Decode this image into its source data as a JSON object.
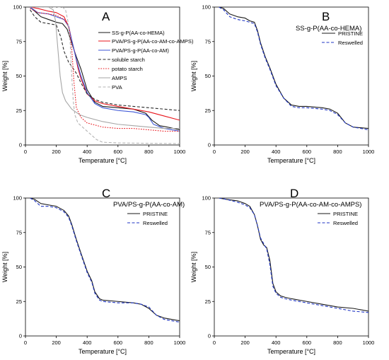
{
  "colors": {
    "black": "#1a1a1a",
    "red": "#e8141b",
    "blue": "#3b55d6",
    "dashed_black": "#2a2a2a",
    "dotted_red": "#e8141b",
    "gray": "#a6a6a6",
    "dashed_gray": "#b3b3b3",
    "reswelled_blue": "#1f35c4"
  },
  "chart_data": [
    {
      "panel": "A",
      "title": "",
      "type": "line",
      "xlabel": "Temperature [°C]",
      "ylabel": "Weight [%]",
      "xlim": [
        0,
        1000
      ],
      "ylim": [
        0,
        100
      ],
      "xticks": [
        "0",
        "200",
        "400",
        "600",
        "800",
        "1000"
      ],
      "yticks": [
        "0",
        "25",
        "50",
        "75",
        "100"
      ],
      "legend_position": "top-right",
      "series": [
        {
          "name": "SS-g-P(AA-co-HEMA)",
          "style": "solid",
          "color": "black",
          "x": [
            30,
            60,
            100,
            150,
            200,
            240,
            270,
            300,
            330,
            360,
            400,
            450,
            500,
            600,
            700,
            780,
            820,
            870,
            920,
            1000
          ],
          "y": [
            100,
            97,
            93,
            91,
            89,
            88,
            84,
            74,
            64,
            55,
            40,
            31,
            28,
            27,
            26,
            23,
            18,
            14,
            13,
            11
          ]
        },
        {
          "name": "PVA/PS-g-P(AA-co-AM-co-AMPS)",
          "style": "solid",
          "color": "red",
          "x": [
            30,
            80,
            150,
            200,
            250,
            280,
            300,
            320,
            340,
            360,
            400,
            450,
            500,
            600,
            700,
            800,
            900,
            1000
          ],
          "y": [
            100,
            99,
            97,
            96,
            93,
            86,
            76,
            67,
            56,
            48,
            37,
            32,
            30,
            28,
            26,
            24,
            21,
            18
          ]
        },
        {
          "name": "PVA/PS-g-P(AA-co-AM)",
          "style": "solid",
          "color": "blue",
          "x": [
            30,
            80,
            150,
            200,
            250,
            280,
            300,
            330,
            360,
            400,
            450,
            500,
            600,
            700,
            780,
            800,
            830,
            900,
            1000
          ],
          "y": [
            100,
            96,
            95,
            93,
            91,
            86,
            76,
            62,
            50,
            38,
            30,
            27,
            25,
            24,
            22,
            20,
            15,
            12,
            10
          ]
        },
        {
          "name": "soluble starch",
          "style": "dashed",
          "color": "dashed_black",
          "x": [
            30,
            60,
            100,
            150,
            200,
            230,
            250,
            280,
            300,
            330,
            360,
            400,
            450,
            500,
            600,
            700,
            800,
            900,
            1000
          ],
          "y": [
            98,
            93,
            89,
            88,
            87,
            78,
            68,
            60,
            57,
            52,
            45,
            37,
            33,
            31,
            29,
            28,
            27,
            26,
            25
          ]
        },
        {
          "name": "potato starch",
          "style": "dotted",
          "color": "dotted_red",
          "x": [
            30,
            80,
            150,
            200,
            250,
            270,
            285,
            300,
            315,
            330,
            360,
            400,
            500,
            600,
            700,
            800,
            900,
            1000
          ],
          "y": [
            99,
            96,
            95,
            94,
            91,
            88,
            84,
            70,
            45,
            27,
            20,
            16,
            13,
            12,
            12,
            11,
            10,
            10
          ]
        },
        {
          "name": "AMPS",
          "style": "solid",
          "color": "gray",
          "x": [
            30,
            100,
            150,
            180,
            195,
            210,
            225,
            240,
            260,
            300,
            350,
            400,
            500,
            600,
            700,
            800,
            900,
            1000
          ],
          "y": [
            100,
            100,
            100,
            98,
            90,
            70,
            50,
            38,
            32,
            26,
            22,
            20,
            17,
            15,
            14,
            13,
            12,
            12
          ]
        },
        {
          "name": "PVA",
          "style": "dashed",
          "color": "dashed_gray",
          "x": [
            30,
            100,
            180,
            240,
            260,
            275,
            290,
            300,
            310,
            320,
            340,
            380,
            420,
            460,
            500,
            600,
            800,
            1000
          ],
          "y": [
            100,
            100,
            100,
            100,
            98,
            90,
            74,
            50,
            32,
            22,
            16,
            12,
            8,
            4,
            2,
            1.5,
            1.2,
            1
          ]
        }
      ]
    },
    {
      "panel": "B",
      "title": "SS-g-P(AA-co-HEMA)",
      "type": "line",
      "xlabel": "Temperature [°C]",
      "ylabel": "Weight [%]",
      "xlim": [
        0,
        1000
      ],
      "ylim": [
        0,
        100
      ],
      "xticks": [
        "0",
        "200",
        "400",
        "600",
        "800",
        "1000"
      ],
      "yticks": [
        "0",
        "25",
        "50",
        "75",
        "100"
      ],
      "legend_position": "top-right",
      "series": [
        {
          "name": "PRISTINE",
          "style": "solid",
          "color": "black",
          "x": [
            30,
            60,
            100,
            150,
            200,
            230,
            260,
            280,
            300,
            330,
            360,
            400,
            450,
            500,
            550,
            600,
            700,
            750,
            800,
            850,
            900,
            1000
          ],
          "y": [
            100,
            99,
            95,
            93,
            92,
            90,
            89,
            83,
            74,
            64,
            56,
            44,
            34,
            29,
            28,
            28,
            27,
            26,
            23,
            16,
            13,
            12
          ]
        },
        {
          "name": "Reswelled",
          "style": "dashed",
          "color": "reswelled_blue",
          "x": [
            30,
            60,
            100,
            150,
            200,
            230,
            260,
            280,
            300,
            330,
            360,
            400,
            450,
            500,
            550,
            600,
            700,
            750,
            800,
            850,
            900,
            1000
          ],
          "y": [
            100,
            98,
            93,
            91,
            90,
            89,
            88,
            82,
            73,
            63,
            55,
            43,
            34,
            28,
            27,
            27,
            26,
            25,
            22,
            16,
            13,
            11
          ]
        }
      ]
    },
    {
      "panel": "C",
      "title": "PVA/PS-g-P(AA-co-AM)",
      "type": "line",
      "xlabel": "Temperature [°C]",
      "ylabel": "Weight [%]",
      "xlim": [
        0,
        1000
      ],
      "ylim": [
        0,
        100
      ],
      "xticks": [
        "0",
        "200",
        "400",
        "600",
        "800",
        "1000"
      ],
      "yticks": [
        "0",
        "25",
        "50",
        "75",
        "100"
      ],
      "legend_position": "top-right",
      "series": [
        {
          "name": "PRISTINE",
          "style": "solid",
          "color": "black",
          "x": [
            30,
            60,
            100,
            150,
            200,
            250,
            280,
            300,
            330,
            360,
            400,
            430,
            450,
            480,
            500,
            600,
            700,
            750,
            800,
            850,
            900,
            1000
          ],
          "y": [
            100,
            99,
            96,
            95,
            94,
            91,
            87,
            81,
            70,
            60,
            47,
            40,
            32,
            27,
            26,
            25,
            24,
            23,
            20,
            15,
            13,
            11
          ]
        },
        {
          "name": "Reswelled",
          "style": "dashed",
          "color": "reswelled_blue",
          "x": [
            30,
            60,
            100,
            150,
            200,
            250,
            280,
            300,
            330,
            360,
            400,
            430,
            450,
            480,
            500,
            600,
            700,
            750,
            800,
            850,
            900,
            1000
          ],
          "y": [
            100,
            98,
            94,
            94,
            93,
            90,
            86,
            80,
            69,
            59,
            46,
            39,
            31,
            26,
            25,
            24,
            24,
            23,
            21,
            15,
            12,
            10
          ]
        }
      ]
    },
    {
      "panel": "D",
      "title": "PVA/PS-g-P(AA-co-AM-co-AMPS)",
      "type": "line",
      "xlabel": "Temperature [°C]",
      "ylabel": "Weight [%]",
      "xlim": [
        0,
        1000
      ],
      "ylim": [
        0,
        100
      ],
      "xticks": [
        "0",
        "200",
        "400",
        "600",
        "800",
        "1000"
      ],
      "yticks": [
        "0",
        "25",
        "50",
        "75",
        "100"
      ],
      "legend_position": "top-right",
      "series": [
        {
          "name": "PRISTINE",
          "style": "solid",
          "color": "black",
          "x": [
            30,
            80,
            150,
            200,
            230,
            260,
            280,
            300,
            320,
            340,
            360,
            380,
            400,
            430,
            460,
            500,
            600,
            700,
            800,
            900,
            1000
          ],
          "y": [
            100,
            99,
            98,
            96,
            94,
            88,
            80,
            70,
            66,
            64,
            55,
            38,
            32,
            29,
            28,
            27,
            25,
            23,
            21,
            20,
            18
          ]
        },
        {
          "name": "Reswelled",
          "style": "dashed",
          "color": "reswelled_blue",
          "x": [
            30,
            80,
            150,
            200,
            230,
            260,
            280,
            300,
            320,
            340,
            360,
            380,
            400,
            430,
            460,
            500,
            600,
            700,
            800,
            900,
            1000
          ],
          "y": [
            100,
            99,
            97,
            95,
            93,
            88,
            80,
            71,
            67,
            63,
            52,
            36,
            31,
            28,
            27,
            26,
            24,
            22,
            20,
            18,
            17
          ]
        }
      ]
    }
  ]
}
